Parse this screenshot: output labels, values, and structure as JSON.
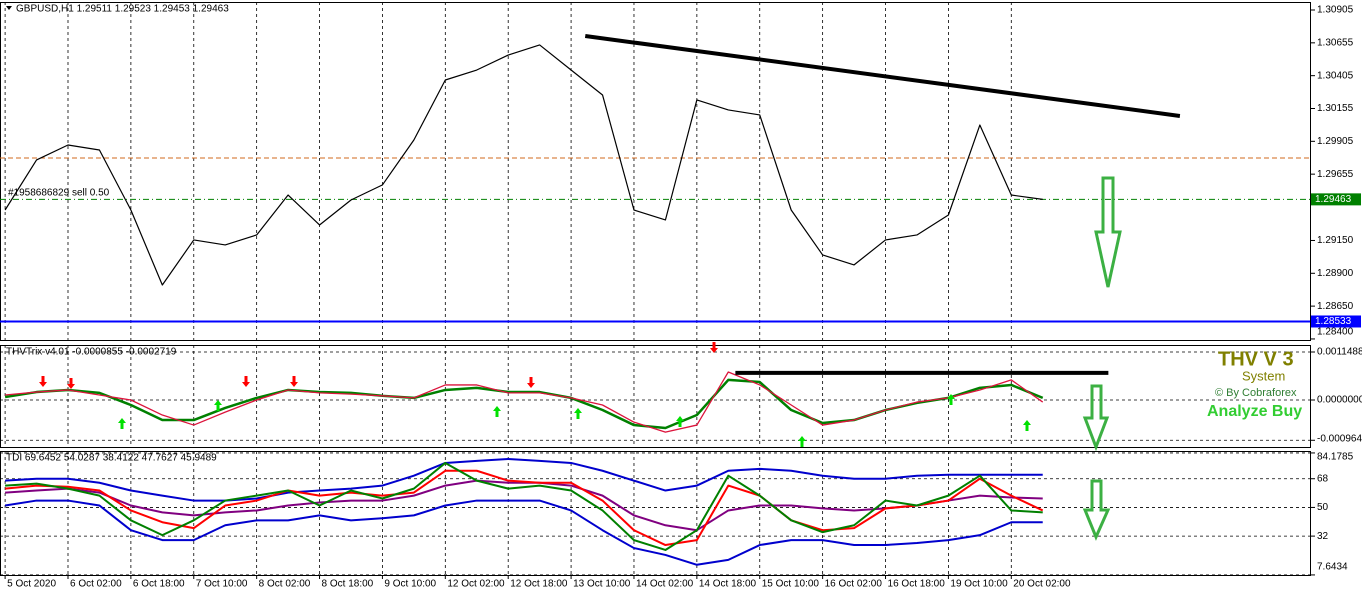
{
  "chart_data": [
    {
      "type": "line",
      "title": "GBPUSD,H1 1.29511 1.29523 1.29453 1.29463",
      "x": [
        0,
        8,
        16,
        24,
        32,
        40,
        48,
        56,
        64,
        72,
        80,
        88,
        96,
        104,
        112,
        120,
        128,
        136,
        144,
        152,
        160,
        168,
        176,
        184,
        192,
        200,
        208,
        216,
        224,
        232,
        240,
        248,
        256,
        264
      ],
      "series": [
        {
          "color": "#000000",
          "width": 1.2,
          "values": [
            1.29382,
            1.29763,
            1.29877,
            1.29839,
            1.29382,
            1.28811,
            1.29154,
            1.29116,
            1.29192,
            1.29496,
            1.29268,
            1.29458,
            1.29573,
            1.29915,
            1.30372,
            1.30448,
            1.30562,
            1.30639,
            1.30448,
            1.30258,
            1.29382,
            1.29306,
            1.3022,
            1.30144,
            1.30106,
            1.29382,
            1.2904,
            1.28964,
            1.29154,
            1.29192,
            1.29344,
            1.30029,
            1.29496,
            1.29463
          ]
        }
      ],
      "xlim": [
        -1.3,
        332
      ],
      "ylim": [
        1.28392,
        1.30966
      ],
      "yticks": [
        1.30905,
        1.30655,
        1.30405,
        1.30155,
        1.29905,
        1.29655,
        {
          "value": 1.2915,
          "label": "1.29150"
        },
        {
          "value": 1.289,
          "label": "1.28900"
        },
        {
          "value": 1.2865,
          "label": "1.28650"
        },
        {
          "value": 1.284,
          "label": "1.28400"
        }
      ],
      "grid": "x",
      "hlines": [
        {
          "value": 1.28533,
          "color": "#0000ff",
          "style": "solid",
          "boxed": true
        },
        {
          "value": 1.29463,
          "color": "#008000",
          "style": "dashdot",
          "boxed": true
        },
        {
          "value": 1.29778,
          "color": "#d2691e",
          "style": "dashed",
          "boxed": false
        }
      ],
      "trendlines": [
        {
          "x": [
            147.6,
            298.9
          ],
          "y": [
            1.30707,
            1.30098
          ],
          "color": "#000000",
          "width": 4
        }
      ],
      "annotations": [
        "#1958686829 sell 0.50"
      ]
    },
    {
      "type": "line",
      "title": "THVTrix v4.01 -0.0000855 -0.0002719",
      "x": [
        0,
        8,
        16,
        24,
        32,
        40,
        48,
        56,
        64,
        72,
        80,
        88,
        96,
        104,
        112,
        120,
        128,
        136,
        144,
        152,
        160,
        168,
        176,
        184,
        192,
        200,
        208,
        216,
        224,
        232,
        240,
        248,
        256,
        264
      ],
      "series": [
        {
          "color": "#008000",
          "width": 2.5,
          "values": [
            7e-05,
            0.00019,
            0.00024,
            0.00017,
            -0.00012,
            -0.00048,
            -0.00048,
            -0.00019,
            5e-05,
            0.00024,
            0.00019,
            0.00017,
            0.0001,
            5e-05,
            0.00024,
            0.00029,
            0.00019,
            0.00019,
            5e-05,
            -0.00024,
            -0.0006,
            -0.00067,
            -0.00036,
            0.00048,
            0.00043,
            -0.00024,
            -0.00055,
            -0.00048,
            -0.00024,
            -7e-05,
            5e-05,
            0.00029,
            0.00036,
            5e-05
          ]
        },
        {
          "color": "#dc143c",
          "width": 1.3,
          "values": [
            0.00012,
            0.00019,
            0.00024,
            0.00012,
            0,
            -0.00036,
            -0.0006,
            -0.00029,
            0,
            0.00024,
            0.00017,
            0.00014,
            0.0001,
            5e-05,
            0.00036,
            0.00036,
            0.00017,
            0.00017,
            5e-05,
            -0.00012,
            -0.00053,
            -0.00077,
            -0.0006,
            0.00067,
            0.00036,
            -0.00012,
            -0.0006,
            -0.00048,
            -0.00024,
            -5e-05,
            5e-05,
            0.00024,
            0.00048,
            -5e-05
          ]
        }
      ],
      "xlim": [
        -1.3,
        332
      ],
      "ylim": [
        -0.001125,
        0.001316
      ],
      "yticks": [
        0.0011488,
        {
          "value": 0,
          "label": "0.0000000"
        },
        -0.000964
      ],
      "grid": "both",
      "trendlines": [
        {
          "x": [
            185.8,
            280.7
          ],
          "y": [
            0.00065,
            0.00065
          ],
          "color": "#000000",
          "width": 4
        }
      ],
      "brand": {
        "name": "THV V 3",
        "subtitle": "System",
        "credit": "© By Cobraforex",
        "signal": "Analyze Buy"
      }
    },
    {
      "type": "line",
      "title": "TDI 69.6452 54.0287 38.4122 47.7627 45.9489",
      "x": [
        0,
        8,
        16,
        24,
        32,
        40,
        48,
        56,
        64,
        72,
        80,
        88,
        96,
        104,
        112,
        120,
        128,
        136,
        144,
        152,
        160,
        168,
        176,
        184,
        192,
        200,
        208,
        216,
        224,
        232,
        240,
        248,
        256,
        264
      ],
      "series": [
        {
          "color": "#0000cd",
          "width": 2,
          "values": [
            66.8,
            68,
            68,
            65.5,
            60.6,
            57.4,
            54.3,
            54.3,
            55.6,
            59.3,
            60.6,
            61.8,
            63.7,
            69.9,
            77.9,
            79.2,
            80.4,
            79.2,
            77.9,
            73,
            66.8,
            60.6,
            63.7,
            73,
            74.2,
            73,
            69.9,
            68,
            68,
            69.9,
            70.5,
            70.5,
            70.5,
            70.5
          ]
        },
        {
          "color": "#0000cd",
          "width": 2,
          "values": [
            51.2,
            54.3,
            54.3,
            51.2,
            35.7,
            29.5,
            29.5,
            38.8,
            41.9,
            41.9,
            45,
            41.9,
            43.2,
            45,
            51.2,
            54.3,
            54.3,
            54.3,
            48.1,
            35.7,
            24.5,
            20.2,
            14,
            17.1,
            26.4,
            29.5,
            29.5,
            26.4,
            26.4,
            27.7,
            29.5,
            32.6,
            40.7,
            40.7
          ]
        },
        {
          "color": "#800080",
          "width": 2,
          "values": [
            59.3,
            60.6,
            61.8,
            59.3,
            51.2,
            46.9,
            45,
            46.9,
            48.1,
            51.2,
            53.1,
            54.3,
            54.3,
            57.4,
            63.7,
            66.8,
            65.5,
            65.5,
            63.7,
            57.4,
            45,
            38.8,
            35.7,
            48.1,
            51.2,
            51.2,
            49.4,
            48.1,
            49.4,
            51.2,
            54.3,
            57.4,
            56.2,
            55.6
          ]
        },
        {
          "color": "#ff0000",
          "width": 2,
          "values": [
            61.8,
            63.7,
            63,
            60.6,
            48.1,
            40.7,
            37,
            51.2,
            54.3,
            60.6,
            57.4,
            59.3,
            57.4,
            59.3,
            73,
            73,
            66.8,
            65.5,
            65.5,
            54.3,
            35.7,
            26.4,
            29.5,
            63.7,
            57.4,
            41.9,
            35.7,
            37,
            49.4,
            51.2,
            54.3,
            68,
            57.4,
            48.1
          ]
        },
        {
          "color": "#008000",
          "width": 2,
          "values": [
            63.7,
            64.9,
            61.8,
            57.4,
            41.9,
            32.6,
            41.9,
            54.3,
            57.4,
            60.6,
            51.2,
            60.6,
            55.6,
            61.8,
            77.9,
            66.8,
            61.8,
            63.7,
            60.6,
            48.1,
            29.5,
            23.3,
            35.7,
            69.9,
            57.4,
            41.9,
            34.5,
            38.8,
            54.3,
            51.2,
            57.4,
            69.9,
            48.1,
            46.9
          ]
        }
      ],
      "xlim": [
        -1.3,
        332
      ],
      "ylim": [
        7.6,
        85.4
      ],
      "yticks": [
        84.1785,
        68,
        50,
        32,
        7.6434
      ],
      "grid": "both",
      "xticks": [
        {
          "value": 0,
          "label": "5 Oct 2020"
        },
        {
          "value": 16,
          "label": "6 Oct 02:00"
        },
        {
          "value": 32,
          "label": "6 Oct 18:00"
        },
        {
          "value": 48,
          "label": "7 Oct 10:00"
        },
        {
          "value": 64,
          "label": "8 Oct 02:00"
        },
        {
          "value": 80,
          "label": "8 Oct 18:00"
        },
        {
          "value": 96,
          "label": "9 Oct 10:00"
        },
        {
          "value": 112,
          "label": "12 Oct 02:00"
        },
        {
          "value": 128,
          "label": "12 Oct 18:00"
        },
        {
          "value": 144,
          "label": "13 Oct 10:00"
        },
        {
          "value": 160,
          "label": "14 Oct 02:00"
        },
        {
          "value": 176,
          "label": "14 Oct 18:00"
        },
        {
          "value": 192,
          "label": "15 Oct 10:00"
        },
        {
          "value": 208,
          "label": "16 Oct 02:00"
        },
        {
          "value": 224,
          "label": "16 Oct 18:00"
        },
        {
          "value": 240,
          "label": "19 Oct 10:00"
        },
        {
          "value": 256,
          "label": "20 Oct 02:00"
        }
      ]
    }
  ]
}
